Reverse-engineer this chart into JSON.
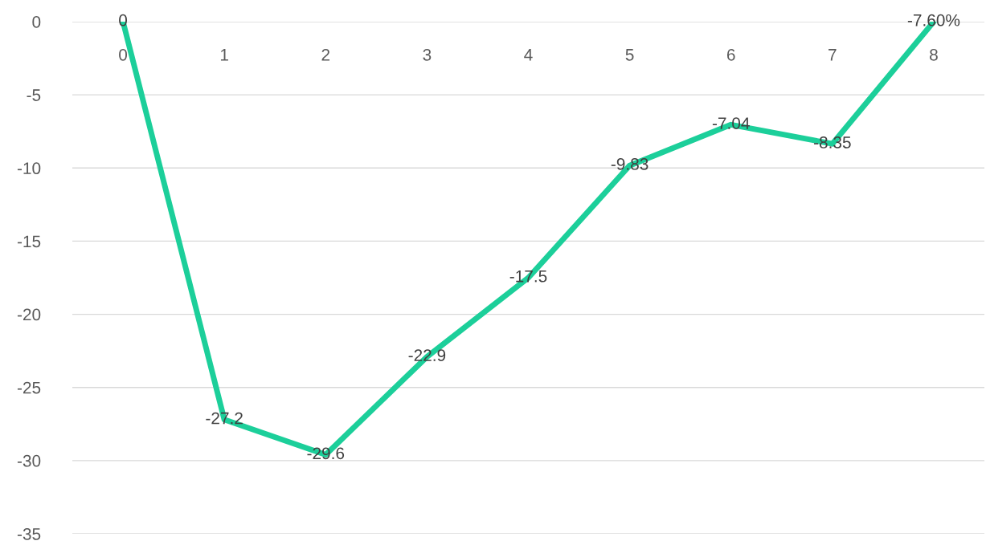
{
  "chart_data": {
    "type": "line",
    "categories": [
      "0",
      "1",
      "2",
      "3",
      "4",
      "5",
      "6",
      "7",
      "8"
    ],
    "series": [
      {
        "color": "#1ccf9a",
        "values": [
          0,
          -27.2,
          -29.6,
          -22.9,
          -17.5,
          -9.83,
          -7.04,
          -8.35,
          0
        ],
        "value_labels": [
          "0",
          "-27.2",
          "-29.6",
          "-22.9",
          "-17.5",
          "-9.83",
          "-7.04",
          "-8.35",
          null
        ]
      }
    ],
    "annotations": [
      {
        "text": "-7.60%",
        "x": "8",
        "y": 0
      }
    ],
    "ylim": [
      -35,
      0
    ],
    "yticks": [
      -35,
      -30,
      -25,
      -20,
      -15,
      -10,
      -5,
      0
    ],
    "grid": "y",
    "legend": false,
    "marker": "none",
    "line_style": "solid"
  }
}
